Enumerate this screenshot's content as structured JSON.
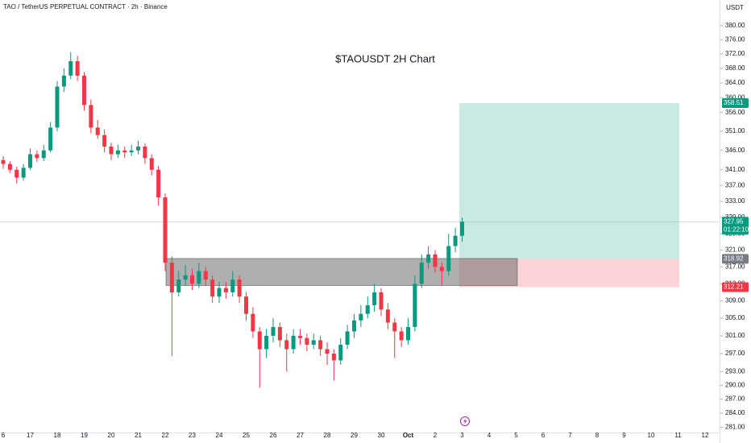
{
  "chart_data": {
    "type": "candlestick",
    "title": "TAO / TetherUS PERPETUAL CONTRACT · 2h · Binance",
    "annotation": "$TAOUSDT 2H Chart",
    "currency": "USDT",
    "log_scale": true,
    "ylim": [
      279.9,
      387.4
    ],
    "yticks": [
      {
        "value": 380,
        "label": "380.00"
      },
      {
        "value": 376,
        "label": "376.00"
      },
      {
        "value": 372,
        "label": "372.00"
      },
      {
        "value": 368,
        "label": "368.00"
      },
      {
        "value": 364,
        "label": "364.00"
      },
      {
        "value": 360,
        "label": "360.00"
      },
      {
        "value": 356,
        "label": "356.00"
      },
      {
        "value": 351,
        "label": "351.00"
      },
      {
        "value": 346,
        "label": "346.00"
      },
      {
        "value": 341,
        "label": "341.00"
      },
      {
        "value": 337,
        "label": "337.00"
      },
      {
        "value": 333,
        "label": "333.00"
      },
      {
        "value": 329,
        "label": "329.00"
      },
      {
        "value": 325,
        "label": "325.00"
      },
      {
        "value": 321,
        "label": "321.00"
      },
      {
        "value": 317,
        "label": "317.00"
      },
      {
        "value": 313,
        "label": "313.00"
      },
      {
        "value": 309,
        "label": "309.00"
      },
      {
        "value": 305,
        "label": "305.00"
      },
      {
        "value": 301,
        "label": "301.00"
      },
      {
        "value": 297,
        "label": "297.00"
      },
      {
        "value": 293,
        "label": "293.00"
      },
      {
        "value": 290,
        "label": "290.00"
      },
      {
        "value": 287,
        "label": "287.00"
      },
      {
        "value": 284,
        "label": "284.00"
      },
      {
        "value": 281,
        "label": "281.00"
      }
    ],
    "date_labels": [
      "6",
      "17",
      "18",
      "19",
      "20",
      "21",
      "22",
      "23",
      "24",
      "25",
      "26",
      "27",
      "28",
      "29",
      "30",
      "Oct",
      "2",
      "3",
      "4",
      "5",
      "6",
      "7",
      "8",
      "9",
      "10",
      "11",
      "12"
    ],
    "up_color": "#089981",
    "down_color": "#f23645",
    "ohlc": [
      [
        343.5,
        344.5,
        341.2,
        342.5
      ],
      [
        342.5,
        343.2,
        340.2,
        341
      ],
      [
        341,
        341.8,
        337.5,
        339
      ],
      [
        339,
        342.5,
        338.2,
        341.5
      ],
      [
        341.5,
        346.5,
        341,
        345
      ],
      [
        345,
        346,
        343,
        344
      ],
      [
        344,
        347.5,
        343.2,
        346
      ],
      [
        346,
        353.5,
        345.5,
        352
      ],
      [
        352,
        364.5,
        351,
        363
      ],
      [
        363,
        368,
        361.5,
        366
      ],
      [
        366,
        372.5,
        365,
        370
      ],
      [
        370,
        371.5,
        364.5,
        366
      ],
      [
        366,
        367,
        356.5,
        358
      ],
      [
        358,
        359.5,
        350.5,
        352
      ],
      [
        352,
        354,
        349,
        350
      ],
      [
        350,
        351.5,
        345.5,
        347
      ],
      [
        347,
        348,
        343.5,
        345
      ],
      [
        345,
        347.5,
        344,
        346
      ],
      [
        346,
        347,
        344,
        345.5
      ],
      [
        345.5,
        347.5,
        344.5,
        346
      ],
      [
        346,
        348.5,
        345,
        347
      ],
      [
        347,
        347.8,
        342.5,
        344
      ],
      [
        344,
        345,
        339.5,
        341
      ],
      [
        341,
        342,
        332,
        334
      ],
      [
        334,
        335,
        316,
        318
      ],
      [
        318,
        319.5,
        296.5,
        311
      ],
      [
        311,
        316,
        310,
        314
      ],
      [
        314,
        317.5,
        312.5,
        315
      ],
      [
        315,
        316.5,
        311.5,
        313
      ],
      [
        313,
        318,
        312,
        316
      ],
      [
        316,
        317,
        312.5,
        314
      ],
      [
        314,
        315,
        308.5,
        310
      ],
      [
        310,
        313.5,
        308.5,
        312
      ],
      [
        312,
        313.5,
        309.5,
        311
      ],
      [
        311,
        316,
        310,
        314
      ],
      [
        314,
        315,
        308.5,
        310
      ],
      [
        310,
        311,
        304.5,
        306
      ],
      [
        306,
        307.5,
        300.5,
        302
      ],
      [
        302,
        303,
        289.5,
        298
      ],
      [
        298,
        302.5,
        296,
        301
      ],
      [
        301,
        305,
        299.5,
        303
      ],
      [
        303,
        304,
        298.5,
        300
      ],
      [
        300,
        301.5,
        293,
        298
      ],
      [
        298,
        302.5,
        297,
        301
      ],
      [
        301,
        302.5,
        299,
        300.5
      ],
      [
        300.5,
        301.5,
        297.5,
        299
      ],
      [
        299,
        301.5,
        298,
        300
      ],
      [
        300,
        301,
        296.5,
        298
      ],
      [
        298,
        299.5,
        294.5,
        297
      ],
      [
        297,
        298,
        291,
        295.5
      ],
      [
        295.5,
        300.5,
        294.5,
        299
      ],
      [
        299,
        303.5,
        298,
        302
      ],
      [
        302,
        306,
        300.5,
        304.5
      ],
      [
        304.5,
        308,
        303,
        306
      ],
      [
        306,
        310,
        305,
        308
      ],
      [
        308,
        313,
        306.5,
        311
      ],
      [
        311,
        312,
        305.5,
        307
      ],
      [
        307,
        308.5,
        302.5,
        304
      ],
      [
        304,
        305,
        296,
        302
      ],
      [
        302,
        303,
        298.5,
        300
      ],
      [
        300,
        305,
        299,
        303
      ],
      [
        303,
        315,
        302,
        313
      ],
      [
        313,
        320,
        312,
        318
      ],
      [
        318,
        322,
        316.5,
        320
      ],
      [
        320,
        321,
        315.5,
        317
      ],
      [
        317,
        318,
        312.6,
        316
      ],
      [
        316,
        325,
        315,
        322
      ],
      [
        322,
        326.5,
        320.5,
        324.5
      ],
      [
        324.5,
        329,
        323,
        327.95
      ]
    ],
    "last_price": 327.95,
    "countdown": "01:22:10",
    "zone": {
      "top": 319,
      "bottom": 312.6
    },
    "position": {
      "target": 358.51,
      "entry": 318.92,
      "stop": 312.21
    }
  }
}
